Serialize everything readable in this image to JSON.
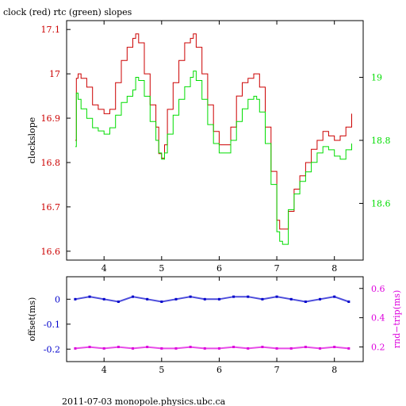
{
  "title": "clock (red) rtc (green) slopes",
  "footer": "2011-07-03  monopole.physics.ubc.ca",
  "colors": {
    "clock": "#cc0000",
    "rtc": "#00dd00",
    "offset": "#0000cc",
    "roundtrip": "#dd00dd",
    "axis": "#000000"
  },
  "chart_data": [
    {
      "type": "line",
      "title": "clock (red) rtc (green) slopes",
      "xlim": [
        3.35,
        8.5
      ],
      "x_ticks": [
        4,
        5,
        6,
        7,
        8
      ],
      "ylabel": "clockslope",
      "ylim": [
        16.58,
        17.12
      ],
      "y_ticks": [
        "16.6",
        "16.7",
        "16.8",
        "16.9",
        "17",
        "17.1"
      ],
      "y2lim": [
        18.42,
        19.18
      ],
      "y2_ticks": [
        "18.6",
        "18.8",
        "19"
      ],
      "series": [
        {
          "name": "clock",
          "axis": "left",
          "x": [
            3.5,
            3.52,
            3.55,
            3.6,
            3.7,
            3.8,
            3.9,
            4.0,
            4.1,
            4.2,
            4.3,
            4.4,
            4.5,
            4.55,
            4.6,
            4.7,
            4.8,
            4.9,
            4.95,
            5.0,
            5.05,
            5.1,
            5.2,
            5.3,
            5.4,
            5.5,
            5.55,
            5.6,
            5.7,
            5.8,
            5.9,
            6.0,
            6.1,
            6.2,
            6.3,
            6.4,
            6.5,
            6.6,
            6.65,
            6.7,
            6.8,
            6.9,
            7.0,
            7.05,
            7.1,
            7.2,
            7.3,
            7.4,
            7.5,
            7.6,
            7.7,
            7.8,
            7.9,
            8.0,
            8.1,
            8.2,
            8.3
          ],
          "values": [
            16.85,
            16.99,
            17.0,
            16.99,
            16.97,
            16.93,
            16.92,
            16.91,
            16.92,
            16.98,
            17.03,
            17.06,
            17.08,
            17.09,
            17.07,
            17.0,
            16.93,
            16.88,
            16.82,
            16.81,
            16.84,
            16.92,
            16.98,
            17.03,
            17.07,
            17.08,
            17.09,
            17.06,
            17.0,
            16.93,
            16.87,
            16.84,
            16.84,
            16.88,
            16.95,
            16.98,
            16.99,
            17.0,
            17.0,
            16.97,
            16.88,
            16.78,
            16.67,
            16.65,
            16.65,
            16.69,
            16.74,
            16.77,
            16.8,
            16.83,
            16.85,
            16.87,
            16.86,
            16.85,
            16.86,
            16.88,
            16.91
          ]
        },
        {
          "name": "rtc",
          "axis": "right",
          "x": [
            3.5,
            3.52,
            3.55,
            3.6,
            3.7,
            3.8,
            3.9,
            4.0,
            4.1,
            4.2,
            4.3,
            4.4,
            4.5,
            4.55,
            4.6,
            4.7,
            4.8,
            4.9,
            4.95,
            5.0,
            5.05,
            5.1,
            5.2,
            5.3,
            5.4,
            5.5,
            5.55,
            5.6,
            5.7,
            5.8,
            5.9,
            6.0,
            6.1,
            6.2,
            6.3,
            6.4,
            6.5,
            6.6,
            6.65,
            6.7,
            6.8,
            6.9,
            7.0,
            7.05,
            7.1,
            7.2,
            7.3,
            7.4,
            7.5,
            7.6,
            7.7,
            7.8,
            7.9,
            8.0,
            8.1,
            8.2,
            8.3
          ],
          "values": [
            18.78,
            18.95,
            18.93,
            18.9,
            18.87,
            18.84,
            18.83,
            18.82,
            18.84,
            18.88,
            18.92,
            18.94,
            18.96,
            19.0,
            18.99,
            18.94,
            18.86,
            18.8,
            18.76,
            18.74,
            18.76,
            18.82,
            18.88,
            18.93,
            18.97,
            19.0,
            19.02,
            18.99,
            18.93,
            18.85,
            18.79,
            18.76,
            18.76,
            18.8,
            18.86,
            18.9,
            18.93,
            18.94,
            18.93,
            18.89,
            18.79,
            18.66,
            18.51,
            18.48,
            18.47,
            18.58,
            18.63,
            18.67,
            18.7,
            18.73,
            18.76,
            18.78,
            18.77,
            18.75,
            18.74,
            18.77,
            18.79
          ]
        }
      ]
    },
    {
      "type": "scatter",
      "xlim": [
        3.35,
        8.5
      ],
      "x_ticks": [
        4,
        5,
        6,
        7,
        8
      ],
      "ylabel": "offset(ms)",
      "ylim": [
        -0.25,
        0.09
      ],
      "y_ticks": [
        "-0.2",
        "-0.1",
        "0"
      ],
      "y2label": "rnd−trip(ms)",
      "y2lim": [
        0.1,
        0.68
      ],
      "y2_ticks": [
        "0.2",
        "0.4",
        "0.6"
      ],
      "series": [
        {
          "name": "offset",
          "axis": "left",
          "x": [
            3.5,
            3.75,
            4.0,
            4.25,
            4.5,
            4.75,
            5.0,
            5.25,
            5.5,
            5.75,
            6.0,
            6.25,
            6.5,
            6.75,
            7.0,
            7.25,
            7.5,
            7.75,
            8.0,
            8.25
          ],
          "values": [
            0.0,
            0.01,
            0.0,
            -0.01,
            0.01,
            0.0,
            -0.01,
            0.0,
            0.01,
            0.0,
            0.0,
            0.01,
            0.01,
            0.0,
            0.01,
            0.0,
            -0.01,
            0.0,
            0.01,
            -0.01
          ]
        },
        {
          "name": "rnd-trip",
          "axis": "right",
          "x": [
            3.5,
            3.75,
            4.0,
            4.25,
            4.5,
            4.75,
            5.0,
            5.25,
            5.5,
            5.75,
            6.0,
            6.25,
            6.5,
            6.75,
            7.0,
            7.25,
            7.5,
            7.75,
            8.0,
            8.25
          ],
          "values": [
            0.19,
            0.2,
            0.19,
            0.2,
            0.19,
            0.2,
            0.19,
            0.19,
            0.2,
            0.19,
            0.19,
            0.2,
            0.19,
            0.2,
            0.19,
            0.19,
            0.2,
            0.19,
            0.2,
            0.19
          ]
        }
      ]
    }
  ]
}
